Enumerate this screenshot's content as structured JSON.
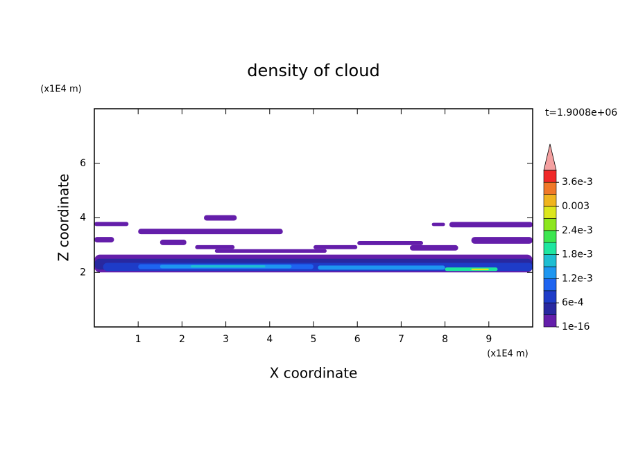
{
  "chart_data": {
    "type": "contour",
    "title": "density of cloud",
    "x_label": "X coordinate",
    "y_label": "Z coordinate",
    "x_unit": "(x1E4 m)",
    "y_unit": "(x1E4 m)",
    "time_label": "t=1.9008e+06",
    "xlim": [
      0,
      10
    ],
    "ylim": [
      0,
      8
    ],
    "xticks": [
      1,
      2,
      3,
      4,
      5,
      6,
      7,
      8,
      9
    ],
    "yticks": [
      2,
      4,
      6
    ],
    "colorbar": {
      "clim": [
        1e-16,
        0.0039
      ],
      "colors": [
        "#641eaa",
        "#2828a0",
        "#1e3cc8",
        "#1e64f0",
        "#1e96f0",
        "#1ebed2",
        "#1ee6a0",
        "#3ce650",
        "#8ce61e",
        "#dce61e",
        "#f0b41e",
        "#f07828",
        "#f02828"
      ],
      "extend_color": "#f4a0a0",
      "ticks": [
        {
          "value": 1e-16,
          "label": "1e-16"
        },
        {
          "value": 0.0006,
          "label": "6e-4"
        },
        {
          "value": 0.0012,
          "label": "1.2e-3"
        },
        {
          "value": 0.0018,
          "label": "1.8e-3"
        },
        {
          "value": 0.0024,
          "label": "2.4e-3"
        },
        {
          "value": 0.003,
          "label": "0.003"
        },
        {
          "value": 0.0036,
          "label": "3.6e-3"
        }
      ]
    },
    "regions": [
      {
        "x": [
          0,
          0.78
        ],
        "z": [
          3.7,
          3.85
        ],
        "value": 0.0001
      },
      {
        "x": [
          2.5,
          3.25
        ],
        "z": [
          3.9,
          4.1
        ],
        "value": 0.0001
      },
      {
        "x": [
          1.0,
          4.3
        ],
        "z": [
          3.4,
          3.6
        ],
        "value": 0.0001
      },
      {
        "x": [
          1.5,
          2.1
        ],
        "z": [
          3.0,
          3.2
        ],
        "value": 0.0001
      },
      {
        "x": [
          0,
          0.45
        ],
        "z": [
          3.1,
          3.3
        ],
        "value": 0.0001
      },
      {
        "x": [
          2.3,
          3.2
        ],
        "z": [
          2.85,
          3.0
        ],
        "value": 0.0001
      },
      {
        "x": [
          2.75,
          5.3
        ],
        "z": [
          2.72,
          2.85
        ],
        "value": 0.0001
      },
      {
        "x": [
          5.0,
          6.0
        ],
        "z": [
          2.85,
          3.0
        ],
        "value": 0.0001
      },
      {
        "x": [
          6.0,
          7.5
        ],
        "z": [
          3.0,
          3.15
        ],
        "value": 0.0001
      },
      {
        "x": [
          7.2,
          8.3
        ],
        "z": [
          2.8,
          3.0
        ],
        "value": 0.0001
      },
      {
        "x": [
          8.1,
          10
        ],
        "z": [
          3.65,
          3.85
        ],
        "value": 0.0001
      },
      {
        "x": [
          7.7,
          8.0
        ],
        "z": [
          3.7,
          3.82
        ],
        "value": 0.0001
      },
      {
        "x": [
          8.6,
          10
        ],
        "z": [
          3.05,
          3.3
        ],
        "value": 0.0001
      },
      {
        "x": [
          0,
          10
        ],
        "z": [
          2.0,
          2.65
        ],
        "value": 0.0001
      },
      {
        "x": [
          0,
          10
        ],
        "z": [
          2.1,
          2.5
        ],
        "value": 0.00045
      },
      {
        "x": [
          0.2,
          10
        ],
        "z": [
          2.05,
          2.35
        ],
        "value": 0.0007
      },
      {
        "x": [
          1.0,
          5.0
        ],
        "z": [
          2.12,
          2.3
        ],
        "value": 0.001
      },
      {
        "x": [
          1.5,
          4.5
        ],
        "z": [
          2.15,
          2.28
        ],
        "value": 0.0013
      },
      {
        "x": [
          2.2,
          3.9
        ],
        "z": [
          2.18,
          2.26
        ],
        "value": 0.0016
      },
      {
        "x": [
          5.1,
          8.0
        ],
        "z": [
          2.1,
          2.25
        ],
        "value": 0.0013
      },
      {
        "x": [
          8.0,
          9.2
        ],
        "z": [
          2.05,
          2.18
        ],
        "value": 0.0019
      },
      {
        "x": [
          8.6,
          9.0
        ],
        "z": [
          2.08,
          2.14
        ],
        "value": 0.0028
      }
    ]
  }
}
